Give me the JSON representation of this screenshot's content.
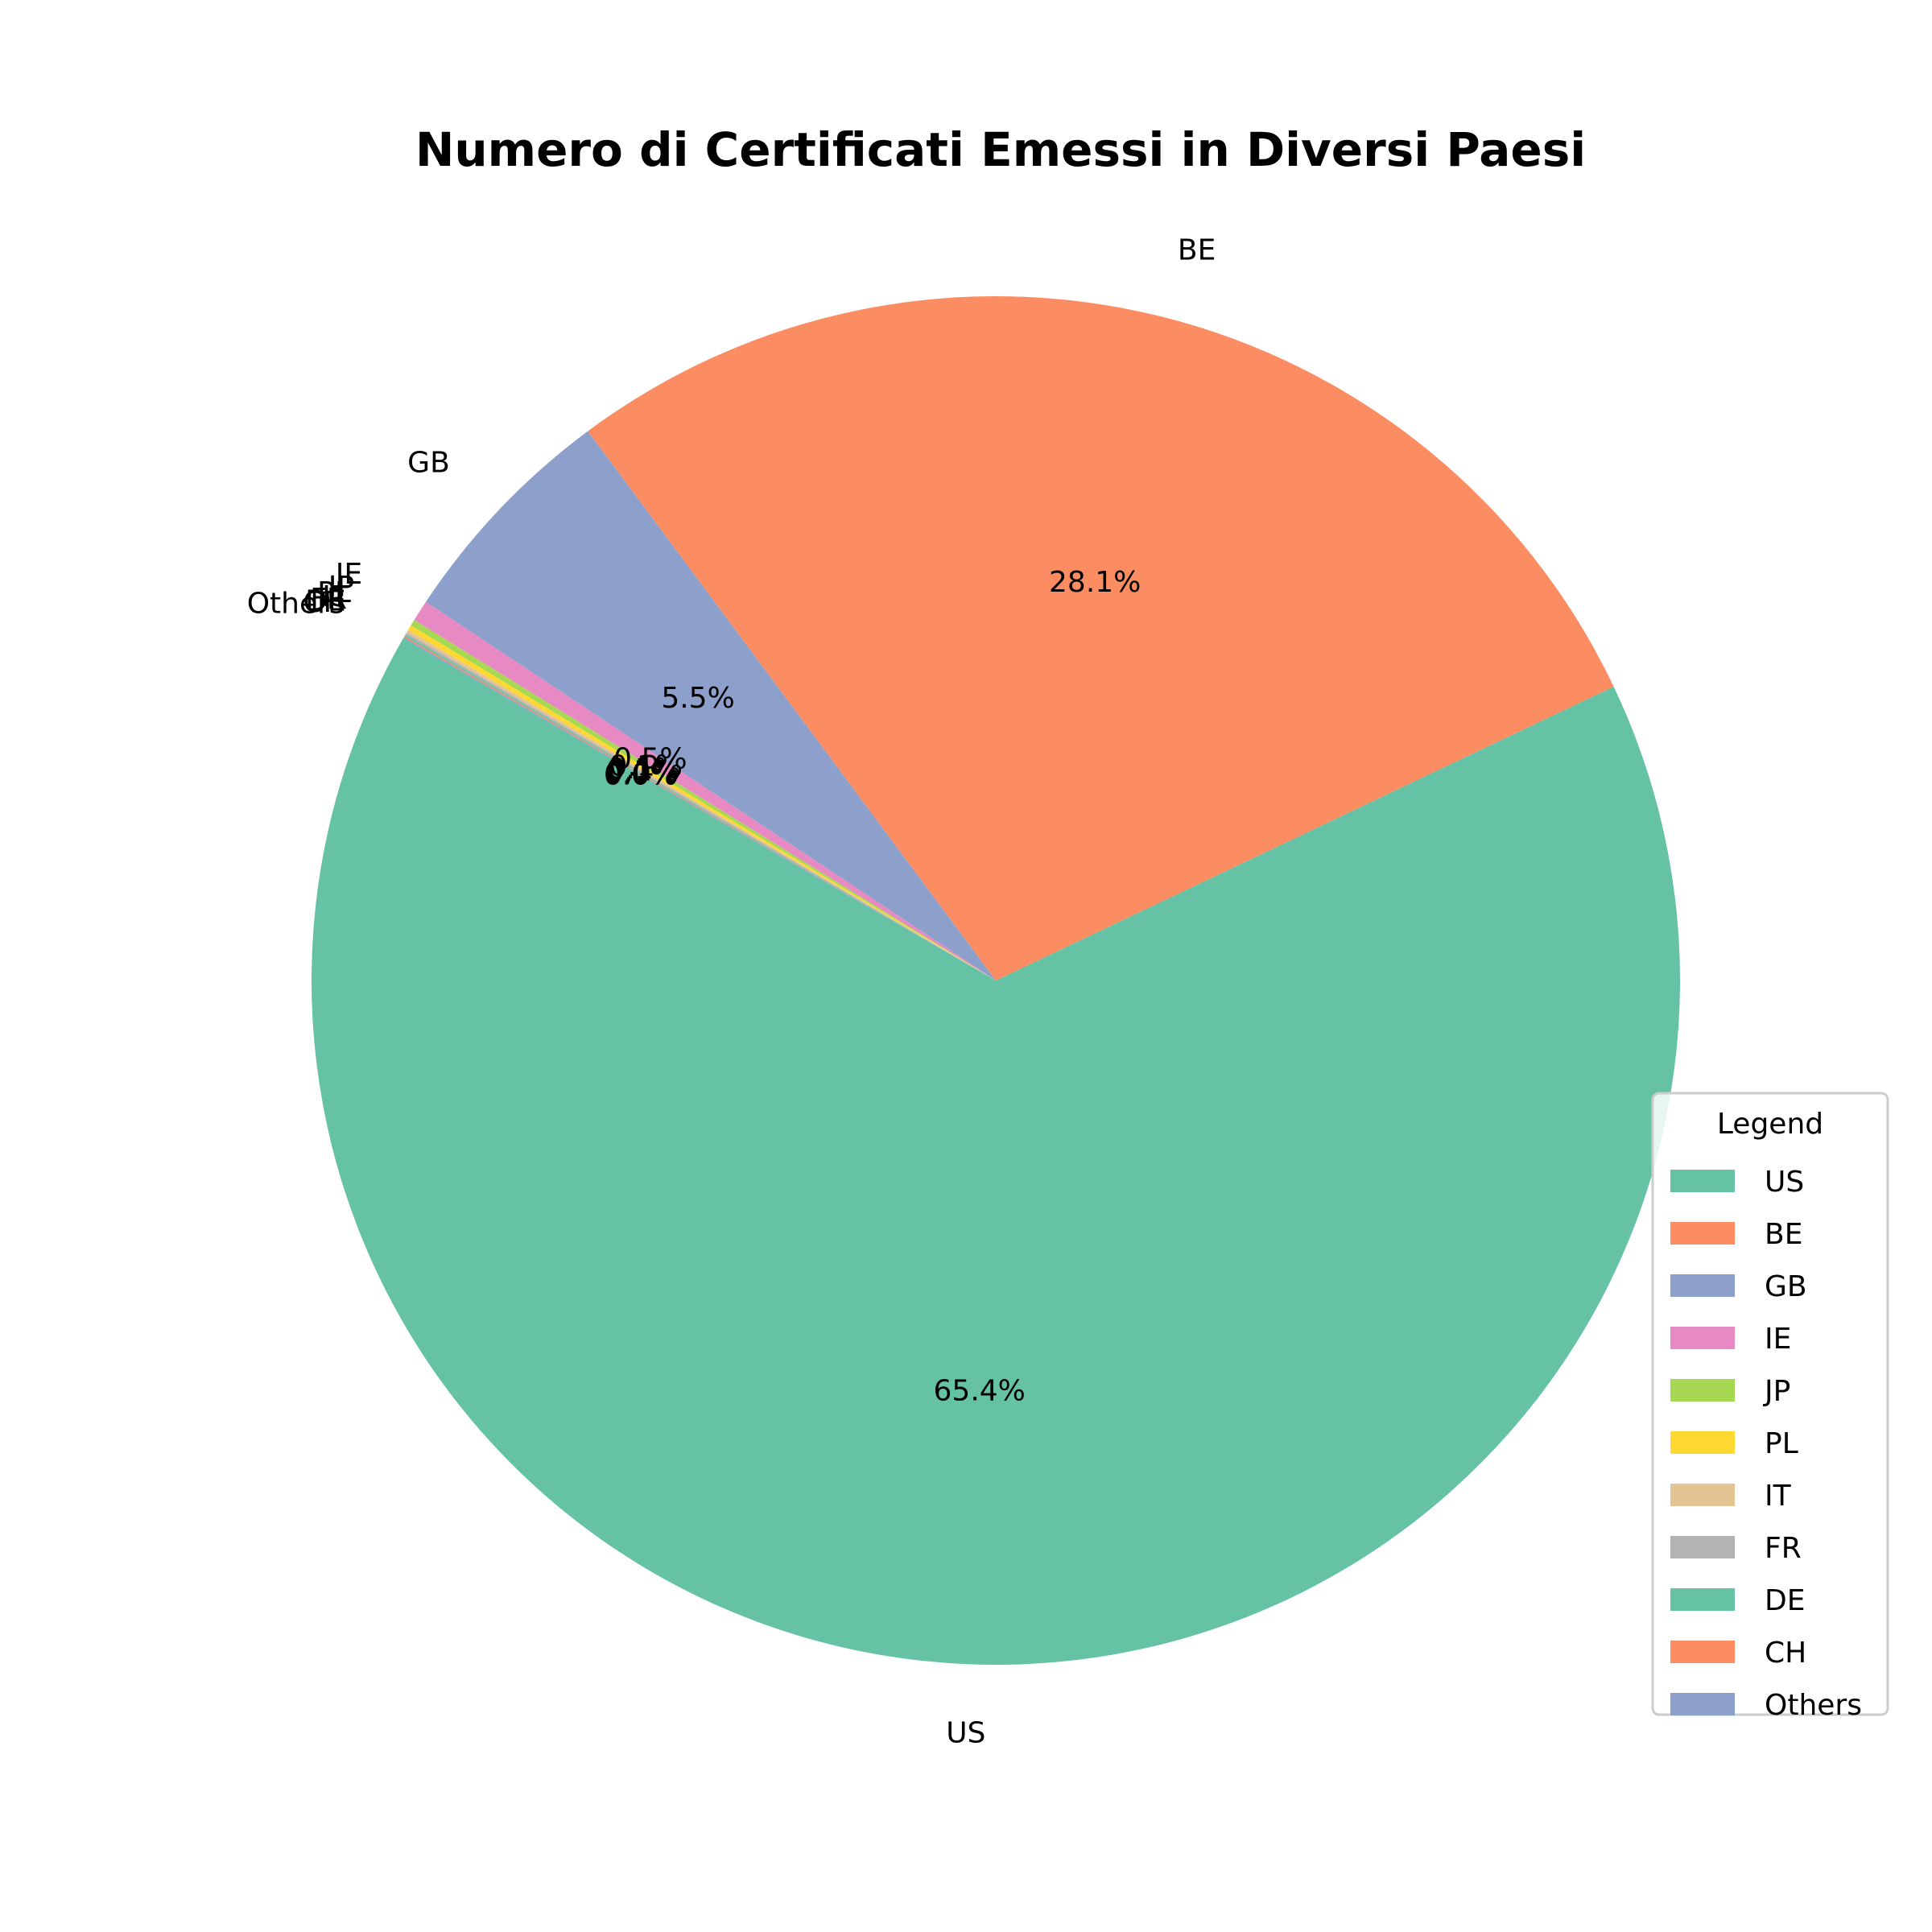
{
  "chart_data": {
    "type": "pie",
    "title": "Numero di Certificati Emessi in Diversi Paesi",
    "start_angle_deg": 150,
    "direction": "counterclockwise",
    "slices": [
      {
        "label": "US",
        "value": 65.4,
        "pct_label": "65.4%",
        "color": "#66c2a5"
      },
      {
        "label": "BE",
        "value": 28.1,
        "pct_label": "28.1%",
        "color": "#fc8d62"
      },
      {
        "label": "GB",
        "value": 5.5,
        "pct_label": "5.5%",
        "color": "#8da0cb"
      },
      {
        "label": "IE",
        "value": 0.5,
        "pct_label": "0.5%",
        "color": "#e78ac3"
      },
      {
        "label": "JP",
        "value": 0.15,
        "pct_label": "0.1%",
        "color": "#a6d854"
      },
      {
        "label": "PL",
        "value": 0.12,
        "pct_label": "0.1%",
        "color": "#ffd92f"
      },
      {
        "label": "IT",
        "value": 0.08,
        "pct_label": "0.1%",
        "color": "#e5c494"
      },
      {
        "label": "FR",
        "value": 0.05,
        "pct_label": "0.0%",
        "color": "#b3b3b3"
      },
      {
        "label": "DE",
        "value": 0.04,
        "pct_label": "0.0%",
        "color": "#66c2a5"
      },
      {
        "label": "CH",
        "value": 0.03,
        "pct_label": "0.0%",
        "color": "#fc8d62"
      },
      {
        "label": "Others",
        "value": 0.03,
        "pct_label": "0.0%",
        "color": "#8da0cb"
      }
    ],
    "legend": {
      "title": "Legend",
      "placement": "right",
      "entries": [
        "US",
        "BE",
        "GB",
        "IE",
        "JP",
        "PL",
        "IT",
        "FR",
        "DE",
        "CH",
        "Others"
      ]
    }
  }
}
